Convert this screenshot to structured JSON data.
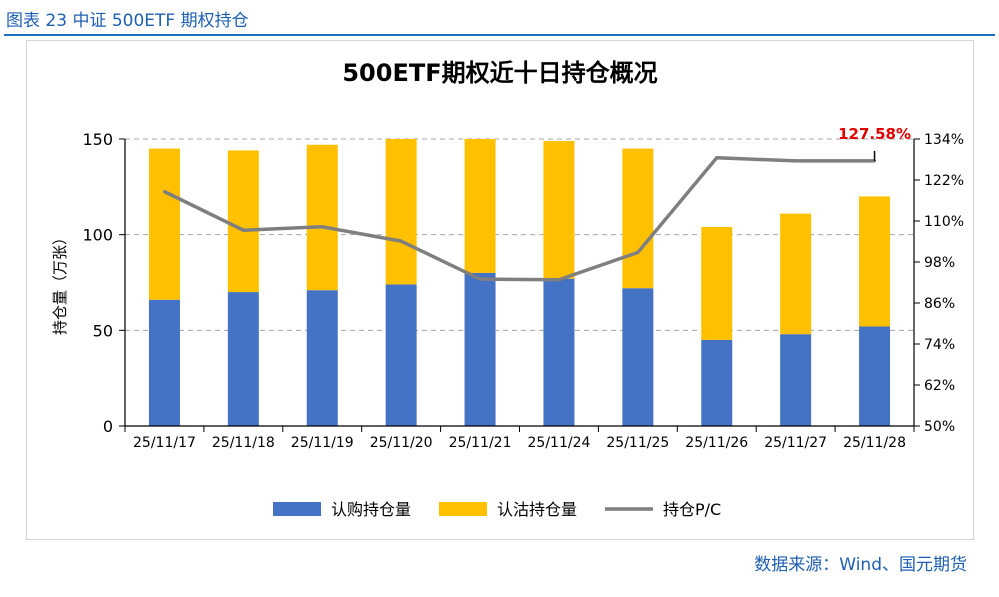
{
  "figure_caption": "图表 23 中证 500ETF 期权持仓",
  "source_note": "数据来源：Wind、国元期货",
  "colors": {
    "call": "#4472c4",
    "put": "#ffc000",
    "pc_line": "#7f7f7f",
    "annotation": "#e00000",
    "caption": "#1f5fb3"
  },
  "chart_data": {
    "type": "bar",
    "stacked": true,
    "title": "500ETF期权近十日持仓概况",
    "ylabel": "持仓量（万张）",
    "ylim": [
      0,
      150
    ],
    "yticks": [
      "150",
      "100",
      "50",
      "0"
    ],
    "y2lim": [
      50,
      134
    ],
    "y2ticks": [
      "134%",
      "122%",
      "110%",
      "98%",
      "86%",
      "74%",
      "62%",
      "50%"
    ],
    "categories": [
      "25/11/17",
      "25/11/18",
      "25/11/19",
      "25/11/20",
      "25/11/21",
      "25/11/24",
      "25/11/25",
      "25/11/26",
      "25/11/27",
      "25/11/28"
    ],
    "series": [
      {
        "name": "认购持仓量",
        "kind": "bar",
        "axis": "left",
        "values": [
          66,
          70,
          71,
          74,
          80,
          77,
          72,
          45,
          48,
          52
        ]
      },
      {
        "name": "认沽持仓量",
        "kind": "bar",
        "axis": "left",
        "values": [
          79,
          74,
          76,
          76,
          70,
          72,
          73,
          59,
          63,
          68
        ]
      },
      {
        "name": "持仓P/C",
        "kind": "line",
        "axis": "right",
        "values": [
          118.6,
          107.3,
          108.3,
          104.1,
          93.0,
          92.8,
          100.8,
          128.5,
          127.6,
          127.58
        ]
      }
    ],
    "annotation": {
      "text": "127.58%",
      "category": "25/11/28"
    },
    "legend": [
      "认购持仓量",
      "认沽持仓量",
      "持仓P/C"
    ],
    "legend_position": "bottom",
    "grid": "dashed horizontal"
  }
}
